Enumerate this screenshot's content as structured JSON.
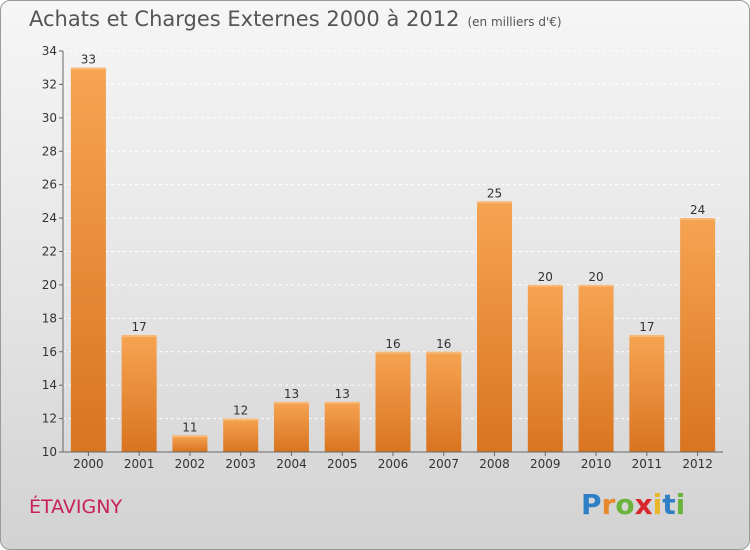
{
  "chart_data": {
    "type": "bar",
    "title": "Achats et Charges Externes 2000 à 2012",
    "subtitle": "(en milliers d'€)",
    "categories": [
      "2000",
      "2001",
      "2002",
      "2003",
      "2004",
      "2005",
      "2006",
      "2007",
      "2008",
      "2009",
      "2010",
      "2011",
      "2012"
    ],
    "values": [
      33,
      17,
      11,
      12,
      13,
      13,
      16,
      16,
      25,
      20,
      20,
      17,
      24
    ],
    "ylim": [
      10,
      34
    ],
    "yticks": [
      10,
      12,
      14,
      16,
      18,
      20,
      22,
      24,
      26,
      28,
      30,
      32,
      34
    ],
    "grid": true,
    "bar_color": "#f0923a",
    "xlabel": "",
    "ylabel": ""
  },
  "commune": "ÉTAVIGNY",
  "brand": {
    "letters": [
      "P",
      "r",
      "o",
      "x",
      "i",
      "t",
      "i"
    ],
    "colors": [
      "#2f7fc6",
      "#e8892b",
      "#6ab43e",
      "#d6282d",
      "#e8b52b",
      "#2f7fc6",
      "#6ab43e"
    ]
  }
}
